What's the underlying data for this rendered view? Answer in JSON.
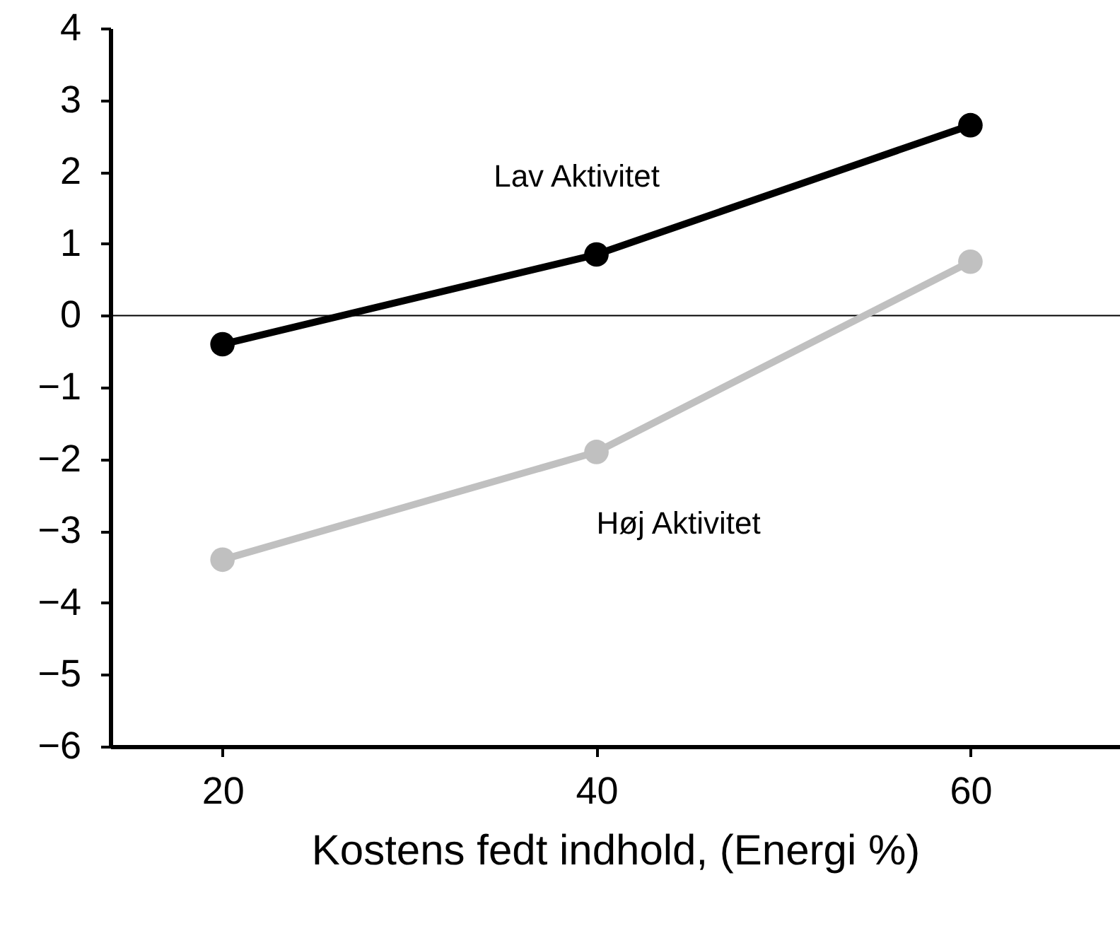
{
  "chart_data": {
    "type": "line",
    "xlabel": "Kostens fedt indhold,  (Energi %)",
    "x": [
      20,
      40,
      60
    ],
    "series": [
      {
        "name": "Lav Aktivitet",
        "color": "#000000",
        "values": [
          -0.4,
          0.85,
          2.65
        ]
      },
      {
        "name": "Høj Aktivitet",
        "color": "#c0c0c0",
        "values": [
          -3.4,
          -1.9,
          0.75
        ]
      }
    ],
    "xlim": [
      14,
      68
    ],
    "xticks": [
      20,
      40,
      60
    ],
    "ylim": [
      -6,
      4
    ],
    "yticks": [
      -6,
      -5,
      -4,
      -3,
      -2,
      -1,
      0,
      1,
      2,
      3,
      4
    ],
    "ref_lines": [
      {
        "axis": "y",
        "value": 0,
        "color": "#000000"
      }
    ],
    "grid": false,
    "legend": false,
    "marker": "circle",
    "line_style": "solid"
  }
}
